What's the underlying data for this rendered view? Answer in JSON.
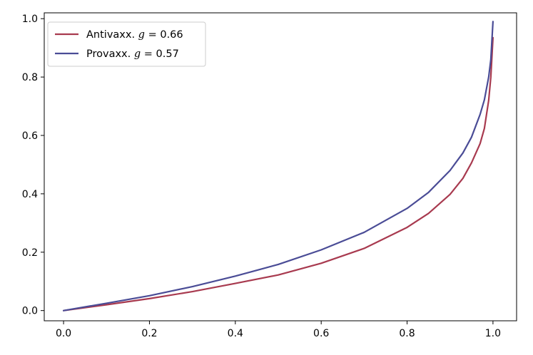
{
  "chart_data": {
    "type": "line",
    "title": "",
    "xlabel": "",
    "ylabel": "",
    "xlim": [
      -0.045,
      1.055
    ],
    "ylim": [
      -0.035,
      1.02
    ],
    "xticks": [
      0.0,
      0.2,
      0.4,
      0.6,
      0.8,
      1.0
    ],
    "xtick_labels": [
      "0.0",
      "0.2",
      "0.4",
      "0.6",
      "0.8",
      "1.0"
    ],
    "yticks": [
      0.0,
      0.2,
      0.4,
      0.6,
      0.8,
      1.0
    ],
    "ytick_labels": [
      "0.0",
      "0.2",
      "0.4",
      "0.6",
      "0.8",
      "1.0"
    ],
    "grid": false,
    "legend_position": "top-left",
    "series": [
      {
        "name": "Antivaxx.",
        "legend_value": "0.66",
        "color": "#a83a4f",
        "x": [
          0.0,
          0.1,
          0.2,
          0.3,
          0.4,
          0.5,
          0.6,
          0.7,
          0.8,
          0.85,
          0.9,
          0.93,
          0.95,
          0.97,
          0.98,
          0.99,
          0.995,
          1.0
        ],
        "y": [
          0.0,
          0.02,
          0.041,
          0.065,
          0.093,
          0.122,
          0.162,
          0.213,
          0.285,
          0.333,
          0.398,
          0.453,
          0.506,
          0.572,
          0.624,
          0.72,
          0.8,
          0.935
        ]
      },
      {
        "name": "Provaxx.",
        "legend_value": "0.57",
        "color": "#4a4c96",
        "x": [
          0.0,
          0.1,
          0.2,
          0.3,
          0.4,
          0.5,
          0.6,
          0.7,
          0.8,
          0.85,
          0.9,
          0.93,
          0.95,
          0.97,
          0.98,
          0.99,
          0.995,
          1.0
        ],
        "y": [
          0.0,
          0.025,
          0.051,
          0.082,
          0.118,
          0.158,
          0.208,
          0.268,
          0.35,
          0.405,
          0.48,
          0.54,
          0.594,
          0.672,
          0.722,
          0.8,
          0.86,
          0.99
        ]
      }
    ]
  }
}
